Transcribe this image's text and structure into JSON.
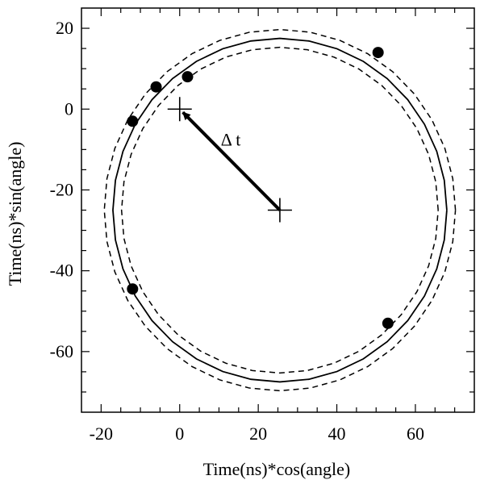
{
  "chart_data": {
    "type": "scatter",
    "title": "",
    "xlabel": "Time(ns)*cos(angle)",
    "ylabel": "Time(ns)*sin(angle)",
    "xlim": [
      -25,
      75
    ],
    "ylim": [
      -75,
      25
    ],
    "x_ticks": [
      -20,
      0,
      20,
      40,
      60
    ],
    "y_ticks": [
      20,
      0,
      -20,
      -40,
      -60
    ],
    "x_tick_labels": [
      "-20",
      "0",
      "20",
      "40",
      "60"
    ],
    "y_tick_labels": [
      "20",
      "0",
      "-20",
      "-40",
      "-60"
    ],
    "grid": false,
    "legend": "none",
    "points": [
      {
        "x": -12,
        "y": -3
      },
      {
        "x": -6,
        "y": 5.5
      },
      {
        "x": 2,
        "y": 8
      },
      {
        "x": 50.5,
        "y": 14
      },
      {
        "x": -12,
        "y": -44.5
      },
      {
        "x": 53,
        "y": -53
      }
    ],
    "fit_circle": {
      "center_x": 25.5,
      "center_y": -25,
      "radius": 42.5,
      "style": "solid"
    },
    "bound_circles": [
      {
        "center_x": 25.5,
        "center_y": -25,
        "radius": 40.3,
        "style": "dashed"
      },
      {
        "center_x": 25.5,
        "center_y": -25,
        "radius": 44.7,
        "style": "dashed"
      }
    ],
    "origin_marker": {
      "x": 0,
      "y": 0
    },
    "center_marker": {
      "x": 25.5,
      "y": -25
    },
    "arrow": {
      "from_x": 25.5,
      "from_y": -25,
      "to_x": 0,
      "to_y": 0,
      "label": "Δ t"
    },
    "arrow_label_pos": {
      "x": 13,
      "y": -9
    }
  }
}
